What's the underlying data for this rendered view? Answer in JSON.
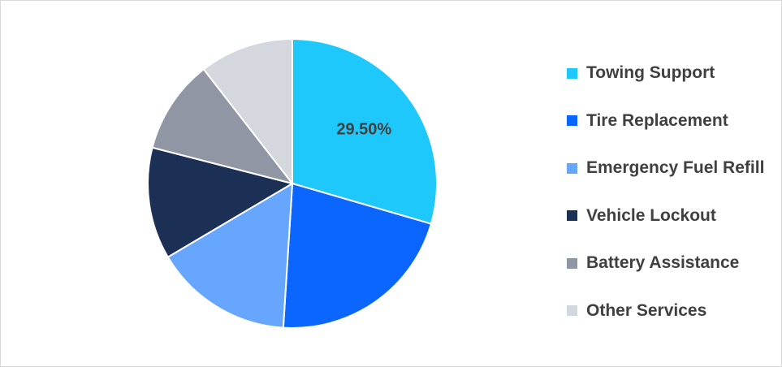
{
  "chart_data": {
    "type": "pie",
    "categories": [
      "Towing Support",
      "Tire Replacement",
      "Emergency Fuel Refill",
      "Vehicle Lockout",
      "Battery Assistance",
      "Other Services"
    ],
    "values": [
      29.5,
      21.5,
      15.5,
      12.5,
      10.5,
      10.5
    ],
    "colors": [
      "#1ec8fa",
      "#0a66ff",
      "#66a6ff",
      "#1c3055",
      "#9096a3",
      "#d5d7de"
    ],
    "data_labels": [
      {
        "category": "Towing Support",
        "text": "29.50%"
      }
    ],
    "legend_position": "right",
    "start_angle_deg": 0,
    "direction": "clockwise"
  }
}
